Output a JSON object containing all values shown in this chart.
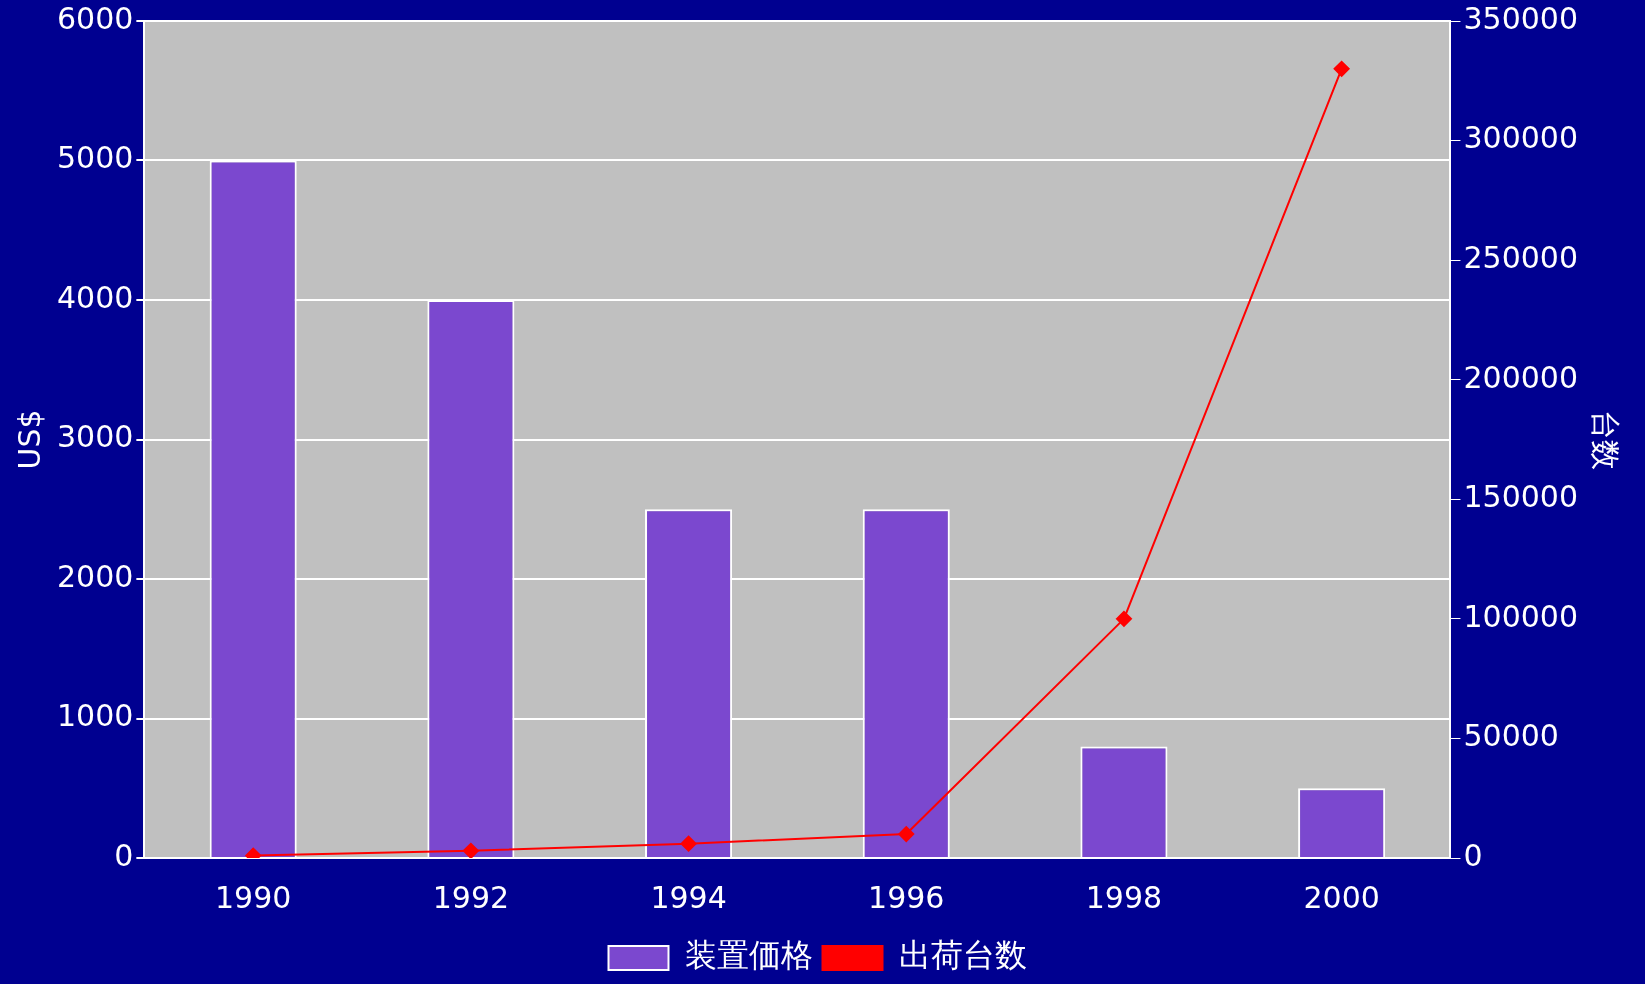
{
  "chart_data": {
    "type": "bar",
    "categories": [
      "1990",
      "1992",
      "1994",
      "1996",
      "1998",
      "2000"
    ],
    "ylabel": "US$",
    "y2label": "台数",
    "series": [
      {
        "name": "装置価格",
        "color": "#7b48cf",
        "values": [
          5000,
          4000,
          2500,
          2500,
          800,
          500
        ]
      },
      {
        "name": "出荷台数",
        "type": "line",
        "axis": "y2",
        "color": "#ff0000",
        "values": [
          1000,
          3000,
          6000,
          10000,
          100000,
          330000
        ]
      }
    ],
    "ylim": [
      0,
      6000
    ],
    "yticks": [
      0,
      1000,
      2000,
      3000,
      4000,
      5000,
      6000
    ],
    "y2lim": [
      0,
      350000
    ],
    "y2ticks": [
      0,
      50000,
      100000,
      150000,
      200000,
      250000,
      300000,
      350000
    ],
    "grid": "y",
    "legend": "bottom",
    "marker": "diamond"
  }
}
